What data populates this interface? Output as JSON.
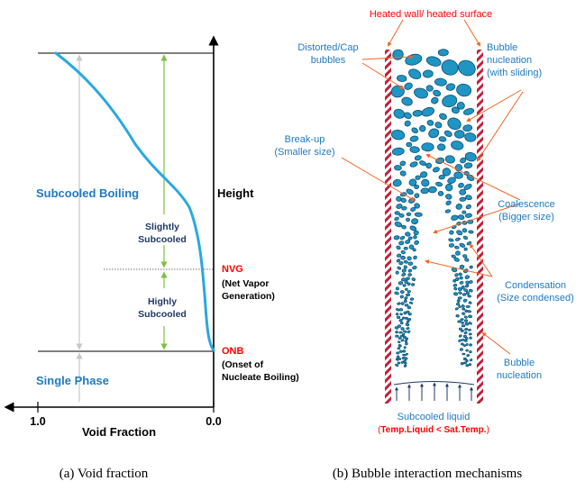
{
  "panel_a": {
    "axis_y_label": "Height",
    "axis_x_label": "Void Fraction",
    "tick_left": "1.0",
    "tick_right": "0.0",
    "region_subcooled": "Subcooled Boiling",
    "region_single": "Single Phase",
    "slightly_line1": "Slightly",
    "slightly_line2": "Subcooled",
    "highly_line1": "Highly",
    "highly_line2": "Subcooled",
    "nvg_title": "NVG",
    "nvg_desc1": "(Net Vapor",
    "nvg_desc2": "Generation)",
    "onb_title": "ONB",
    "onb_desc1": "(Onset of",
    "onb_desc2": "Nucleate Boiling)"
  },
  "panel_b": {
    "top_label": "Heated wall/ heated surface",
    "distorted_1": "Distorted/Cap",
    "distorted_2": "bubbles",
    "nucleation_slide_1": "Bubble",
    "nucleation_slide_2": "nucleation",
    "nucleation_slide_3": "(with sliding)",
    "breakup_1": "Break-up",
    "breakup_2": "(Smaller size)",
    "coalescence_1": "Coalescence",
    "coalescence_2": "(Bigger size)",
    "condensation_1": "Condensation",
    "condensation_2": "(Size condensed)",
    "nucleation_1": "Bubble",
    "nucleation_2": "nucleation",
    "subcooled_liquid": "Subcooled liquid",
    "paren_open": "(",
    "temp_condition": "Temp.Liquid < Sat.Temp.",
    "paren_close": ")"
  },
  "captions": {
    "a": "(a) Void fraction",
    "b": "(b)   Bubble interaction mechanisms"
  },
  "colors": {
    "curve": "#29a8e0",
    "label_blue": "#1f7ac0",
    "navy": "#1f3864",
    "red": "#ff0000",
    "orange": "#f26522",
    "green": "#7dc242",
    "wall": "#c0203a",
    "bubble": "#1f95c4"
  }
}
